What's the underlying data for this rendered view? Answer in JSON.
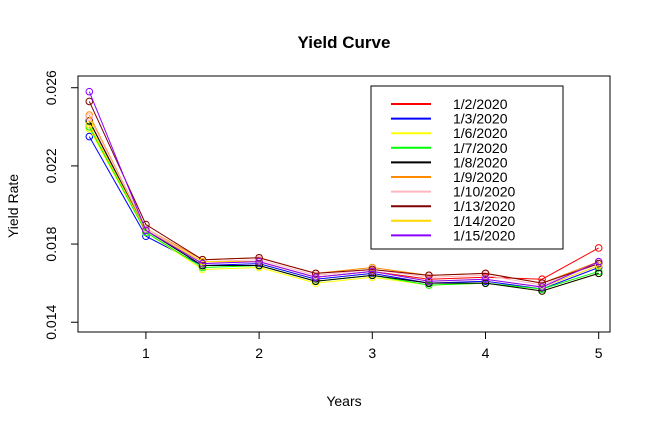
{
  "chart_data": {
    "type": "line",
    "title": "Yield Curve",
    "xlabel": "Years",
    "ylabel": "Yield Rate",
    "x": [
      0.5,
      1,
      1.5,
      2,
      2.5,
      3,
      3.5,
      4,
      4.5,
      5
    ],
    "xlim": [
      0.4,
      5.1
    ],
    "ylim": [
      0.0135,
      0.0266
    ],
    "xticks": [
      1,
      2,
      3,
      4,
      5
    ],
    "xtick_labels": [
      "1",
      "2",
      "3",
      "4",
      "5"
    ],
    "yticks": [
      0.014,
      0.018,
      0.022,
      0.026
    ],
    "ytick_labels": [
      "0.014",
      "0.018",
      "0.022",
      "0.026"
    ],
    "grid": false,
    "legend_position": "top-right",
    "series": [
      {
        "name": "1/2/2020",
        "color": "#ff0000",
        "values": [
          0.0243,
          0.0187,
          0.0171,
          0.0171,
          0.0163,
          0.0166,
          0.0162,
          0.0163,
          0.0162,
          0.0178
        ]
      },
      {
        "name": "1/3/2020",
        "color": "#0000ff",
        "values": [
          0.0235,
          0.0184,
          0.0169,
          0.017,
          0.0162,
          0.0165,
          0.016,
          0.0161,
          0.0157,
          0.0168
        ]
      },
      {
        "name": "1/6/2020",
        "color": "#ffff00",
        "values": [
          0.0239,
          0.0186,
          0.0167,
          0.0168,
          0.016,
          0.0163,
          0.0159,
          0.016,
          0.0156,
          0.0165
        ]
      },
      {
        "name": "1/7/2020",
        "color": "#00ff00",
        "values": [
          0.024,
          0.0186,
          0.0168,
          0.0169,
          0.0161,
          0.0164,
          0.0159,
          0.016,
          0.0157,
          0.0166
        ]
      },
      {
        "name": "1/8/2020",
        "color": "#000000",
        "values": [
          0.0243,
          0.0187,
          0.0169,
          0.0169,
          0.0161,
          0.0164,
          0.016,
          0.016,
          0.0156,
          0.0165
        ]
      },
      {
        "name": "1/9/2020",
        "color": "#ff8c00",
        "values": [
          0.0246,
          0.0188,
          0.0172,
          0.0173,
          0.0165,
          0.0168,
          0.0164,
          0.0165,
          0.016,
          0.0171
        ]
      },
      {
        "name": "1/10/2020",
        "color": "#ffb6c1",
        "values": [
          0.0245,
          0.0188,
          0.0171,
          0.0172,
          0.0164,
          0.0167,
          0.0163,
          0.0164,
          0.0159,
          0.017
        ]
      },
      {
        "name": "1/13/2020",
        "color": "#800000",
        "values": [
          0.0253,
          0.019,
          0.0172,
          0.0173,
          0.0165,
          0.0167,
          0.0164,
          0.0165,
          0.016,
          0.017
        ]
      },
      {
        "name": "1/14/2020",
        "color": "#ffd700",
        "values": [
          0.0241,
          0.0187,
          0.0171,
          0.0171,
          0.0163,
          0.0166,
          0.0161,
          0.0162,
          0.0158,
          0.0169
        ]
      },
      {
        "name": "1/15/2020",
        "color": "#8b00ff",
        "values": [
          0.0258,
          0.0187,
          0.017,
          0.0171,
          0.0163,
          0.0166,
          0.0161,
          0.0162,
          0.0158,
          0.0171
        ]
      }
    ]
  }
}
